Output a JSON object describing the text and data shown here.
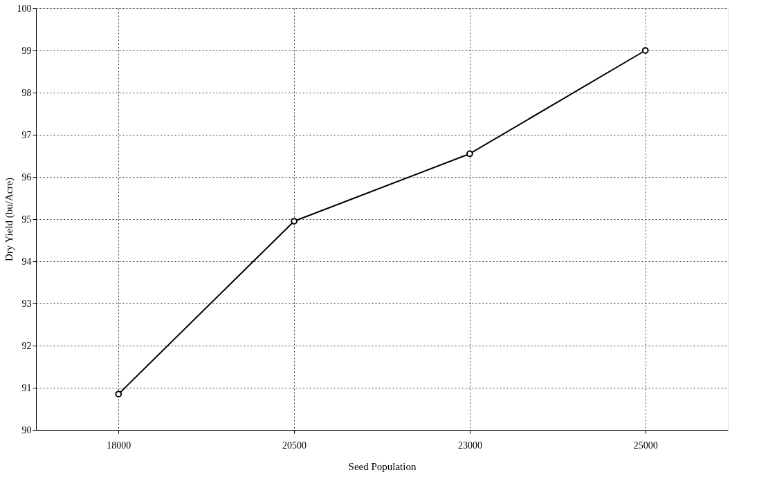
{
  "chart_data": {
    "type": "line",
    "xlabel": "Seed Population",
    "ylabel": "Dry Yield (bu/Acre)",
    "categories": [
      "18000",
      "20500",
      "23000",
      "25000"
    ],
    "series": [
      {
        "color": "#000000",
        "values": [
          90.85,
          94.95,
          96.55,
          99.0
        ]
      }
    ],
    "ylim": [
      90,
      100
    ],
    "yticks": [
      90,
      91,
      92,
      93,
      94,
      95,
      96,
      97,
      98,
      99,
      100
    ],
    "grid": true,
    "marker": "circle",
    "line_style": "solid"
  }
}
